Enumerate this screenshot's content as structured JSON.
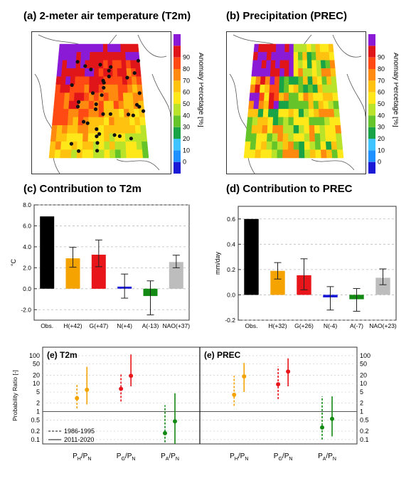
{
  "panel_a": {
    "title": "(a) 2-meter air temperature (T2m)",
    "colorbar_label": "Anomaly Percetage [%]"
  },
  "panel_b": {
    "title": "(b) Precipitation (PREC)",
    "colorbar_label": "Anomaly Percetage [%]"
  },
  "panel_c": {
    "title": "(c) Contribution to T2m"
  },
  "panel_d": {
    "title": "(d) Contribution to PREC"
  },
  "panel_e1": {
    "title": "(e) T2m"
  },
  "panel_e2": {
    "title": "(e) PREC"
  },
  "colors": {
    "obs": "#000000",
    "H": "#f5a300",
    "G": "#e8151a",
    "N": "#1a1ad6",
    "A": "#138a13",
    "NAO": "#bdbdbd",
    "map_border": "#555555",
    "ocean": "#ffffff"
  },
  "chart_data": [
    {
      "type": "heatmap",
      "title": "(a) 2-meter air temperature (T2m)",
      "colorbar": {
        "label": "Anomaly Percetage [%]",
        "ticks": [
          "0",
          "10",
          "20",
          "30",
          "40",
          "50",
          "60",
          "70",
          "80",
          "90"
        ],
        "colors": [
          "#1a1ad6",
          "#1e90ff",
          "#40c4ff",
          "#19a347",
          "#66c42b",
          "#b9e32a",
          "#ffe81a",
          "#ffc20f",
          "#ff8a0f",
          "#ff4a14",
          "#e0151a",
          "#8b1ad6"
        ]
      },
      "region": "Europe",
      "observation_markers": true
    },
    {
      "type": "heatmap",
      "title": "(b) Precipitation (PREC)",
      "colorbar": {
        "label": "Anomaly Percetage [%]",
        "ticks": [
          "0",
          "10",
          "20",
          "30",
          "40",
          "50",
          "60",
          "70",
          "80",
          "90"
        ],
        "colors": [
          "#1a1ad6",
          "#1e90ff",
          "#40c4ff",
          "#19a347",
          "#66c42b",
          "#b9e32a",
          "#ffe81a",
          "#ffc20f",
          "#ff8a0f",
          "#ff4a14",
          "#e0151a",
          "#8b1ad6"
        ]
      },
      "region": "Europe",
      "observation_markers": false
    },
    {
      "type": "bar",
      "title": "(c) Contribution to T2m",
      "ylabel": "°C",
      "ylim": [
        -3.0,
        8.0
      ],
      "yticks": [
        "-2.0",
        "0.0",
        "2.0",
        "4.0",
        "6.0",
        "8.0"
      ],
      "ytick_values": [
        -2,
        0,
        2,
        4,
        6,
        8
      ],
      "categories": [
        "Obs.",
        "H(+42)",
        "G(+47)",
        "N(+4)",
        "A(-13)",
        "NAO(+37)"
      ],
      "values": [
        6.9,
        2.9,
        3.25,
        0.2,
        -0.7,
        2.55
      ],
      "err_low": [
        null,
        2.05,
        2.1,
        -0.9,
        -2.5,
        2.0
      ],
      "err_high": [
        null,
        3.95,
        4.65,
        1.4,
        0.75,
        3.2
      ],
      "grid": true
    },
    {
      "type": "bar",
      "title": "(d) Contribution to PREC",
      "ylabel": "mm/day",
      "ylim": [
        -0.2,
        0.7
      ],
      "yticks": [
        "-0.2",
        "0.0",
        "0.2",
        "0.4",
        "0.6"
      ],
      "ytick_values": [
        -0.2,
        0,
        0.2,
        0.4,
        0.6
      ],
      "categories": [
        "Obs.",
        "H(+32)",
        "G(+26)",
        "N(-4)",
        "A(-7)",
        "NAO(+23)"
      ],
      "values": [
        0.6,
        0.19,
        0.155,
        -0.02,
        -0.035,
        0.135
      ],
      "err_low": [
        null,
        0.125,
        0.04,
        -0.12,
        -0.13,
        0.08
      ],
      "err_high": [
        null,
        0.255,
        0.285,
        0.065,
        0.05,
        0.205
      ],
      "grid": true
    },
    {
      "type": "scatter",
      "title": "(e) T2m / (e) PREC",
      "ylabel": "Probability Ratio [-]",
      "yscale": "log",
      "ylim": [
        0.07,
        200
      ],
      "yticks": [
        "0.1",
        "0.2",
        "0.5",
        "1",
        "2",
        "5",
        "10",
        "20",
        "50",
        "100"
      ],
      "ytick_values": [
        0.1,
        0.2,
        0.5,
        1,
        2,
        5,
        10,
        20,
        50,
        100
      ],
      "categories": [
        "P_H/P_N",
        "P_G/P_N",
        "P_A/P_N"
      ],
      "category_labels": [
        {
          "main": "P",
          "sub1": "H",
          "sep": "/P",
          "sub2": "N"
        },
        {
          "main": "P",
          "sub1": "G",
          "sep": "/P",
          "sub2": "N"
        },
        {
          "main": "P",
          "sub1": "A",
          "sep": "/P",
          "sub2": "N"
        }
      ],
      "legend": [
        "1986-1995",
        "2011-2020"
      ],
      "panels": [
        {
          "name": "(e) T2m",
          "points": [
            {
              "cat": "P_H/P_N",
              "period": "1986-1995",
              "value": 3.0,
              "low": 1.3,
              "high": 10
            },
            {
              "cat": "P_H/P_N",
              "period": "2011-2020",
              "value": 6.0,
              "low": 1.8,
              "high": 40
            },
            {
              "cat": "P_G/P_N",
              "period": "1986-1995",
              "value": 6.5,
              "low": 2.3,
              "high": 23
            },
            {
              "cat": "P_G/P_N",
              "period": "2011-2020",
              "value": 19,
              "low": 8,
              "high": 110
            },
            {
              "cat": "P_A/P_N",
              "period": "1986-1995",
              "value": 0.17,
              "low": 0.08,
              "high": 1.7
            },
            {
              "cat": "P_A/P_N",
              "period": "2011-2020",
              "value": 0.45,
              "low": 0.07,
              "high": 4.5
            }
          ]
        },
        {
          "name": "(e) PREC",
          "points": [
            {
              "cat": "P_H/P_N",
              "period": "1986-1995",
              "value": 4.0,
              "low": 1.6,
              "high": 19
            },
            {
              "cat": "P_H/P_N",
              "period": "2011-2020",
              "value": 18,
              "low": 5,
              "high": 55
            },
            {
              "cat": "P_G/P_N",
              "period": "1986-1995",
              "value": 9.5,
              "low": 2.8,
              "high": 40
            },
            {
              "cat": "P_G/P_N",
              "period": "2011-2020",
              "value": 27,
              "low": 8,
              "high": 80
            },
            {
              "cat": "P_A/P_N",
              "period": "1986-1995",
              "value": 0.27,
              "low": 0.1,
              "high": 3.5
            },
            {
              "cat": "P_A/P_N",
              "period": "2011-2020",
              "value": 0.55,
              "low": 0.13,
              "high": 3.5
            }
          ]
        }
      ]
    }
  ]
}
